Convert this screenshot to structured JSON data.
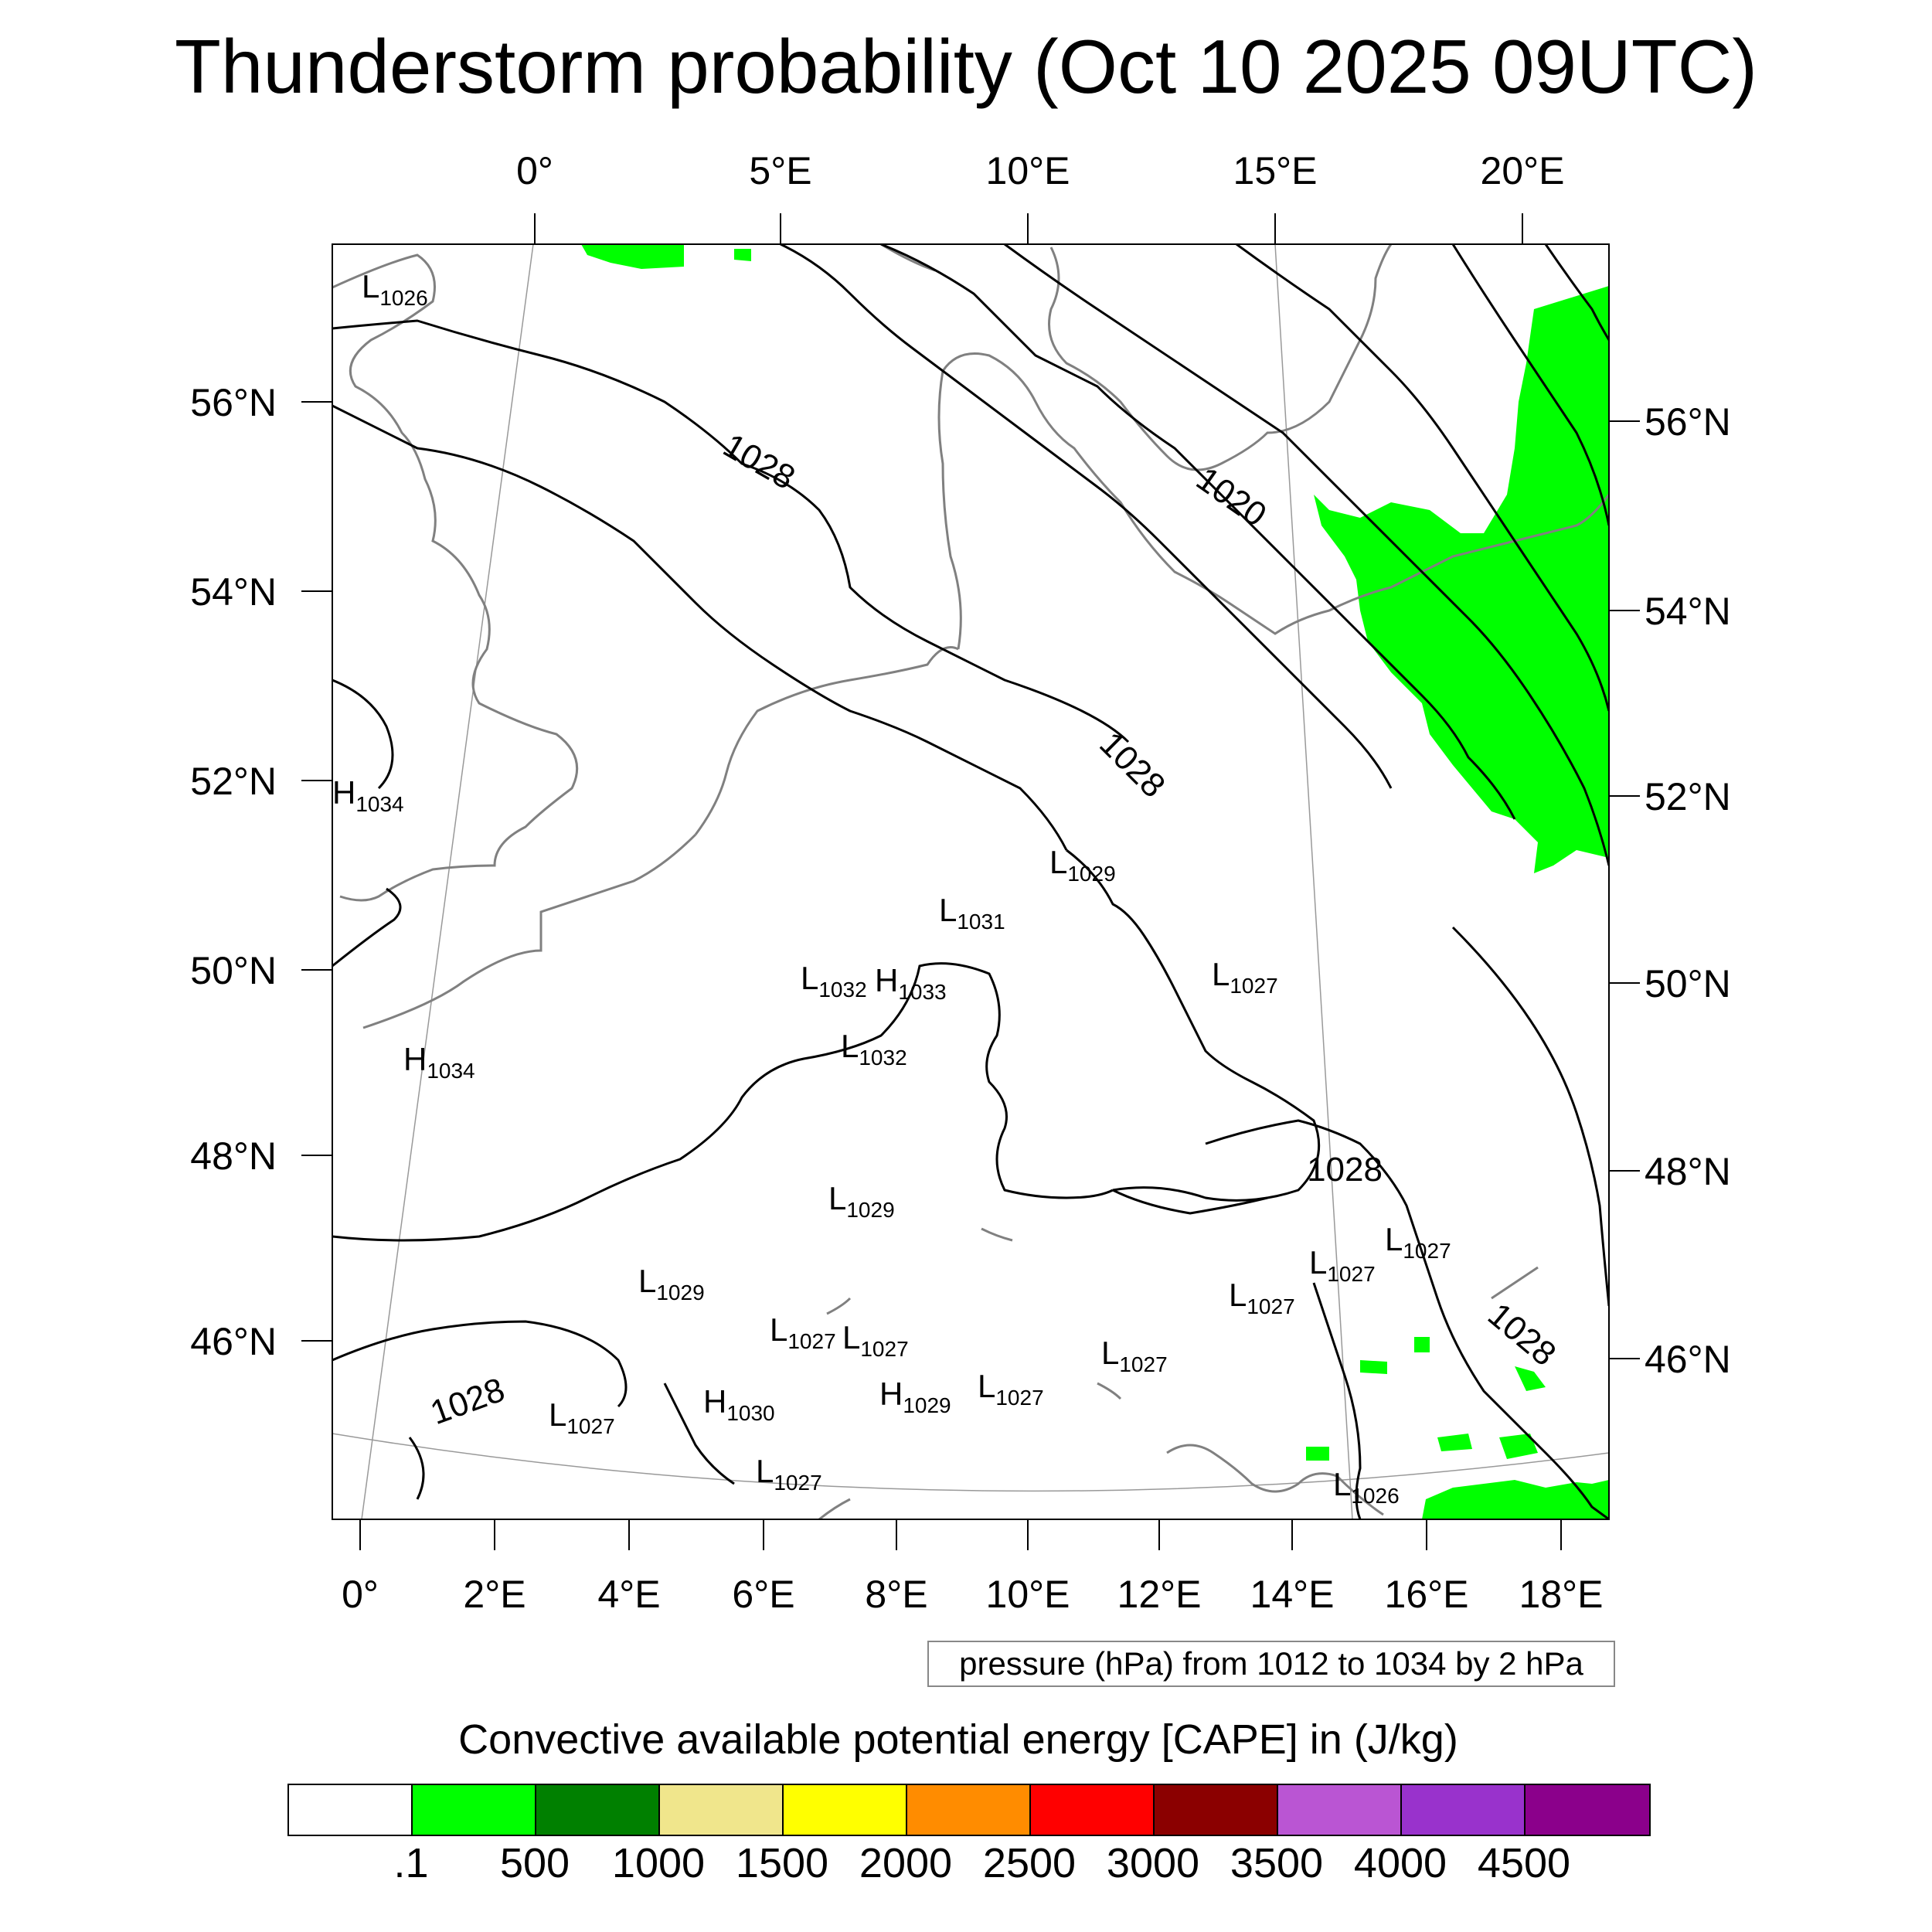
{
  "title": "Thunderstorm probability (Oct 10 2025 09UTC)",
  "axes": {
    "top_lon_labels": [
      "0°",
      "5°E",
      "10°E",
      "15°E",
      "20°E"
    ],
    "bottom_lon_labels": [
      "0°",
      "2°E",
      "4°E",
      "6°E",
      "8°E",
      "10°E",
      "12°E",
      "14°E",
      "16°E",
      "18°E"
    ],
    "left_lat_labels": [
      "56°N",
      "54°N",
      "52°N",
      "50°N",
      "48°N",
      "46°N"
    ],
    "right_lat_labels": [
      "56°N",
      "54°N",
      "52°N",
      "50°N",
      "48°N",
      "46°N"
    ]
  },
  "contour_labels": [
    {
      "text": "1028",
      "rotation": 30
    },
    {
      "text": "1020",
      "rotation": 35
    },
    {
      "text": "1028",
      "rotation": 45
    },
    {
      "text": "1028",
      "rotation": 0
    },
    {
      "text": "1028",
      "rotation": -20
    },
    {
      "text": "1028",
      "rotation": 40
    }
  ],
  "pressure_centers": [
    {
      "letter": "L",
      "value": "1026"
    },
    {
      "letter": "H",
      "value": "1034"
    },
    {
      "letter": "H",
      "value": "1034"
    },
    {
      "letter": "L",
      "value": "1029"
    },
    {
      "letter": "L",
      "value": "1031"
    },
    {
      "letter": "L",
      "value": "1032"
    },
    {
      "letter": "H",
      "value": "1033"
    },
    {
      "letter": "L",
      "value": "1032"
    },
    {
      "letter": "L",
      "value": "1027"
    },
    {
      "letter": "L",
      "value": "1029"
    },
    {
      "letter": "L",
      "value": "1027"
    },
    {
      "letter": "L",
      "value": "1027"
    },
    {
      "letter": "L",
      "value": "1029"
    },
    {
      "letter": "L",
      "value": "1027"
    },
    {
      "letter": "L",
      "value": "1027"
    },
    {
      "letter": "L",
      "value": "1027"
    },
    {
      "letter": "L",
      "value": "1027"
    },
    {
      "letter": "H",
      "value": "1030"
    },
    {
      "letter": "H",
      "value": "1029"
    },
    {
      "letter": "L",
      "value": "1027"
    },
    {
      "letter": "L",
      "value": "1027"
    },
    {
      "letter": "L",
      "value": "1027"
    },
    {
      "letter": "L",
      "value": "1026"
    }
  ],
  "info_text": "pressure (hPa) from 1012 to 1034 by 2 hPa",
  "colorbar": {
    "title": "Convective available potential energy [CAPE] in (J/kg)",
    "colors": [
      "#ffffff",
      "#00ff00",
      "#008000",
      "#f0e68c",
      "#ffff00",
      "#ff8c00",
      "#ff0000",
      "#8b0000",
      "#ba55d3",
      "#9932cc",
      "#8b008b"
    ],
    "labels": [
      ".1",
      "500",
      "1000",
      "1500",
      "2000",
      "2500",
      "3000",
      "3500",
      "4000",
      "4500"
    ]
  },
  "colors": {
    "cape_fill": "#00ff00",
    "coastline": "#808080",
    "isobar": "#000000",
    "graticule": "#999999"
  }
}
